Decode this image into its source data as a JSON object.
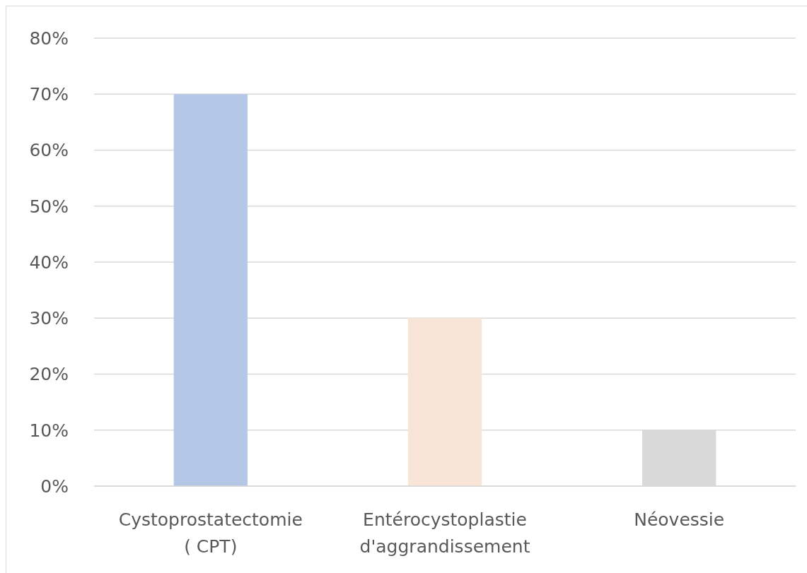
{
  "chart_data": {
    "type": "bar",
    "categories": [
      "Cystoprostatectomie\n( CPT)",
      "Entérocystoplastie\nd'aggrandissement",
      "Néovessie"
    ],
    "values": [
      70,
      30,
      10
    ],
    "colors": [
      "#b4c7e7",
      "#f8e5d8",
      "#d9d9d9"
    ],
    "ylim": [
      0,
      80
    ],
    "yticks": [
      {
        "value": 0,
        "label": "0%"
      },
      {
        "value": 10,
        "label": "10%"
      },
      {
        "value": 20,
        "label": "20%"
      },
      {
        "value": 30,
        "label": "30%"
      },
      {
        "value": 40,
        "label": "40%"
      },
      {
        "value": 50,
        "label": "50%"
      },
      {
        "value": 60,
        "label": "60%"
      },
      {
        "value": 70,
        "label": "70%"
      },
      {
        "value": 80,
        "label": "80%"
      }
    ],
    "grid": "y"
  }
}
